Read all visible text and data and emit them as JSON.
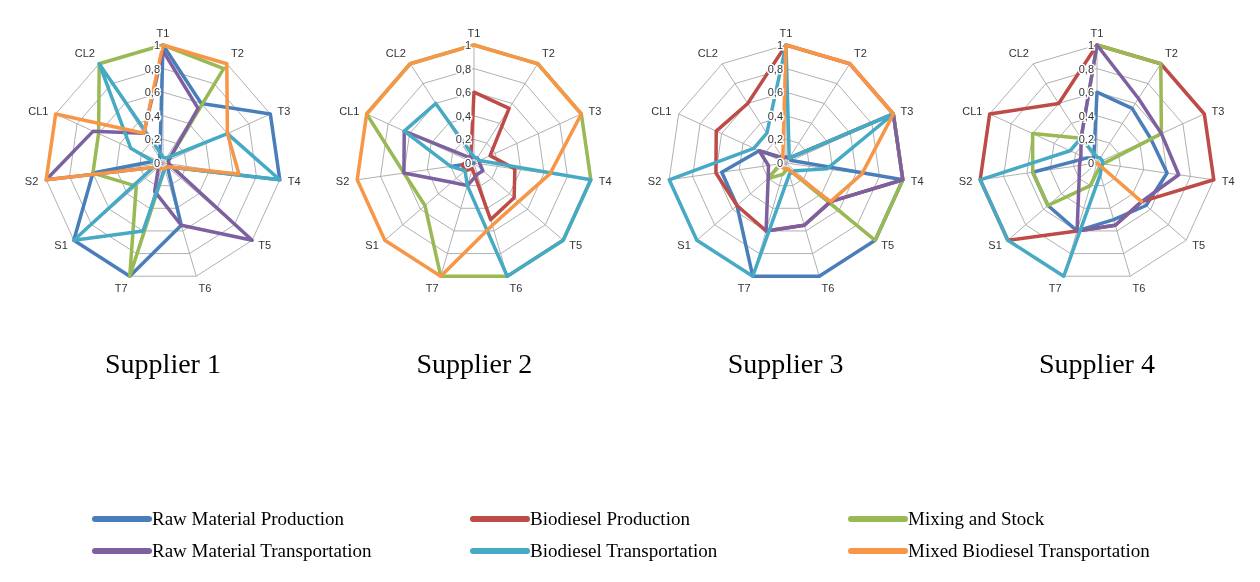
{
  "chart_data": [
    {
      "type": "radar",
      "title": "Supplier 1",
      "categories": [
        "T1",
        "T2",
        "T3",
        "T4",
        "T5",
        "T6",
        "T7",
        "S1",
        "S2",
        "CL1",
        "CL2"
      ],
      "ylim": [
        0,
        1
      ],
      "yticks": [
        {
          "value": 0,
          "label": "0"
        },
        {
          "value": 0.2,
          "label": "0,2"
        },
        {
          "value": 0.4,
          "label": "0,4"
        },
        {
          "value": 0.6,
          "label": "0,6"
        },
        {
          "value": 0.8,
          "label": "0,8"
        },
        {
          "value": 1,
          "label": "1"
        }
      ],
      "grid": true,
      "series": [
        {
          "color": "#4a7ebb",
          "values": [
            1,
            0.6,
            1,
            1,
            0.05,
            0.55,
            1,
            1,
            0.6,
            0.05,
            0.05
          ]
        },
        {
          "color": "#98b954",
          "values": [
            1,
            0.95,
            0.05,
            0.05,
            0.05,
            0.05,
            1,
            0.3,
            0.6,
            0.6,
            1
          ]
        },
        {
          "color": "#7d60a0",
          "values": [
            0.95,
            0.55,
            0.05,
            0.05,
            1,
            0.55,
            0.25,
            0.05,
            1,
            0.65,
            0.3
          ]
        },
        {
          "color": "#46aac5",
          "values": [
            0.05,
            0.05,
            0.6,
            1,
            0.05,
            0.05,
            0.6,
            1,
            0.05,
            0.3,
            1
          ]
        },
        {
          "color": "#f79646",
          "values": [
            1,
            1,
            0.6,
            0.65,
            0.05,
            0.05,
            0.05,
            0.05,
            1,
            1,
            0.3
          ]
        }
      ]
    },
    {
      "type": "radar",
      "title": "Supplier 2",
      "categories": [
        "T1",
        "T2",
        "T3",
        "T4",
        "T5",
        "T6",
        "T7",
        "S1",
        "S2",
        "CL1",
        "CL2"
      ],
      "ylim": [
        0,
        1
      ],
      "yticks": [
        {
          "value": 0,
          "label": "0"
        },
        {
          "value": 0.2,
          "label": "0,2"
        },
        {
          "value": 0.4,
          "label": "0,4"
        },
        {
          "value": 0.6,
          "label": "0,6"
        },
        {
          "value": 0.8,
          "label": "0,8"
        },
        {
          "value": 1,
          "label": "1"
        }
      ],
      "grid": true,
      "series": [
        {
          "color": "#4a7ebb",
          "values": [
            0,
            0,
            0,
            0,
            0,
            0,
            0,
            0,
            0.2,
            0,
            0
          ]
        },
        {
          "color": "#be4b48",
          "values": [
            0.6,
            0.55,
            0.15,
            0.35,
            0.45,
            0.5,
            0.05,
            0.1,
            0.1,
            0.05,
            0.05
          ]
        },
        {
          "color": "#98b954",
          "values": [
            1,
            1,
            1,
            1,
            1,
            1,
            1,
            0.55,
            0.6,
            1,
            1
          ]
        },
        {
          "color": "#7d60a0",
          "values": [
            0.05,
            0.05,
            0.05,
            0.05,
            0.1,
            0.1,
            0.2,
            0.25,
            0.6,
            0.65,
            0.05
          ]
        },
        {
          "color": "#46aac5",
          "values": [
            0.05,
            0.05,
            0.05,
            1,
            1,
            1,
            0.2,
            0.1,
            0.2,
            0.65,
            0.6
          ]
        },
        {
          "color": "#f79646",
          "values": [
            1,
            1,
            1,
            0.65,
            0.5,
            0.55,
            1,
            1,
            1,
            1,
            1
          ]
        }
      ]
    },
    {
      "type": "radar",
      "title": "Supplier 3",
      "categories": [
        "T1",
        "T2",
        "T3",
        "T4",
        "T5",
        "T6",
        "T7",
        "S1",
        "S2",
        "CL1",
        "CL2"
      ],
      "ylim": [
        0,
        1
      ],
      "yticks": [
        {
          "value": 0,
          "label": "0"
        },
        {
          "value": 0.2,
          "label": "0,2"
        },
        {
          "value": 0.4,
          "label": "0,4"
        },
        {
          "value": 0.6,
          "label": "0,6"
        },
        {
          "value": 0.8,
          "label": "0,8"
        },
        {
          "value": 1,
          "label": "1"
        }
      ],
      "grid": true,
      "series": [
        {
          "color": "#4a7ebb",
          "values": [
            0.05,
            0.05,
            0.05,
            1,
            1,
            1,
            1,
            0.55,
            0.55,
            0.25,
            0.05
          ]
        },
        {
          "color": "#be4b48",
          "values": [
            1,
            1,
            1,
            1,
            0.5,
            0.55,
            0.6,
            0.55,
            0.6,
            0.65,
            0.6
          ]
        },
        {
          "color": "#98b954",
          "values": [
            0.05,
            0.05,
            1,
            1,
            1,
            0.05,
            0.1,
            0.2,
            0.05,
            0.05,
            0.05
          ]
        },
        {
          "color": "#7d60a0",
          "values": [
            0.05,
            0.05,
            1,
            1,
            0.5,
            0.55,
            0.6,
            0.2,
            0.15,
            0.25,
            0.05
          ]
        },
        {
          "color": "#46aac5",
          "values": [
            1,
            0.05,
            1,
            0.35,
            0.1,
            0.1,
            1,
            1,
            1,
            0.3,
            0.3
          ]
        },
        {
          "color": "#f79646",
          "values": [
            1,
            1,
            1,
            0.65,
            0.5,
            0.05,
            0.05,
            0.05,
            0.05,
            0.05,
            0.05
          ]
        }
      ]
    },
    {
      "type": "radar",
      "title": "Supplier 4",
      "categories": [
        "T1",
        "T2",
        "T3",
        "T4",
        "T5",
        "T6",
        "T7",
        "S1",
        "S2",
        "CL1",
        "CL2"
      ],
      "ylim": [
        0,
        1
      ],
      "yticks": [
        {
          "value": 0,
          "label": "0"
        },
        {
          "value": 0.2,
          "label": "0,2"
        },
        {
          "value": 0.4,
          "label": "0,4"
        },
        {
          "value": 0.6,
          "label": "0,6"
        },
        {
          "value": 0.8,
          "label": "0,8"
        },
        {
          "value": 1,
          "label": "1"
        }
      ],
      "grid": true,
      "legend": "bottom",
      "series": [
        {
          "name": "Raw Material Production",
          "color": "#4a7ebb",
          "values": [
            0.6,
            0.55,
            0.5,
            0.6,
            0.55,
            0.5,
            0.6,
            0.55,
            0.55,
            0.1,
            0.05
          ]
        },
        {
          "name": "Biodiesel Production",
          "color": "#be4b48",
          "values": [
            1,
            1,
            1,
            1,
            0.5,
            0.55,
            0.6,
            1,
            1,
            1,
            0.6
          ]
        },
        {
          "name": "Mixing and Stock",
          "color": "#98b954",
          "values": [
            1,
            1,
            0.6,
            0.05,
            0.05,
            0.05,
            0.2,
            0.55,
            0.55,
            0.6,
            0.25
          ]
        },
        {
          "name": "Raw Material Transportation",
          "color": "#7d60a0",
          "values": [
            1,
            0.65,
            0.6,
            0.7,
            0.5,
            0.55,
            0.6,
            0.2,
            0.15,
            0.15,
            0.25
          ]
        },
        {
          "name": "Biodiesel Transportation",
          "color": "#46aac5",
          "values": [
            0.05,
            0.05,
            0.05,
            0.05,
            0.05,
            0.1,
            1,
            1,
            1,
            0.25,
            0.25
          ]
        },
        {
          "name": "Mixed Biodiesel Transportation",
          "color": "#f79646",
          "values": [
            0,
            0,
            0,
            0,
            0.5,
            0,
            0,
            0,
            0,
            0,
            0
          ]
        }
      ]
    }
  ]
}
